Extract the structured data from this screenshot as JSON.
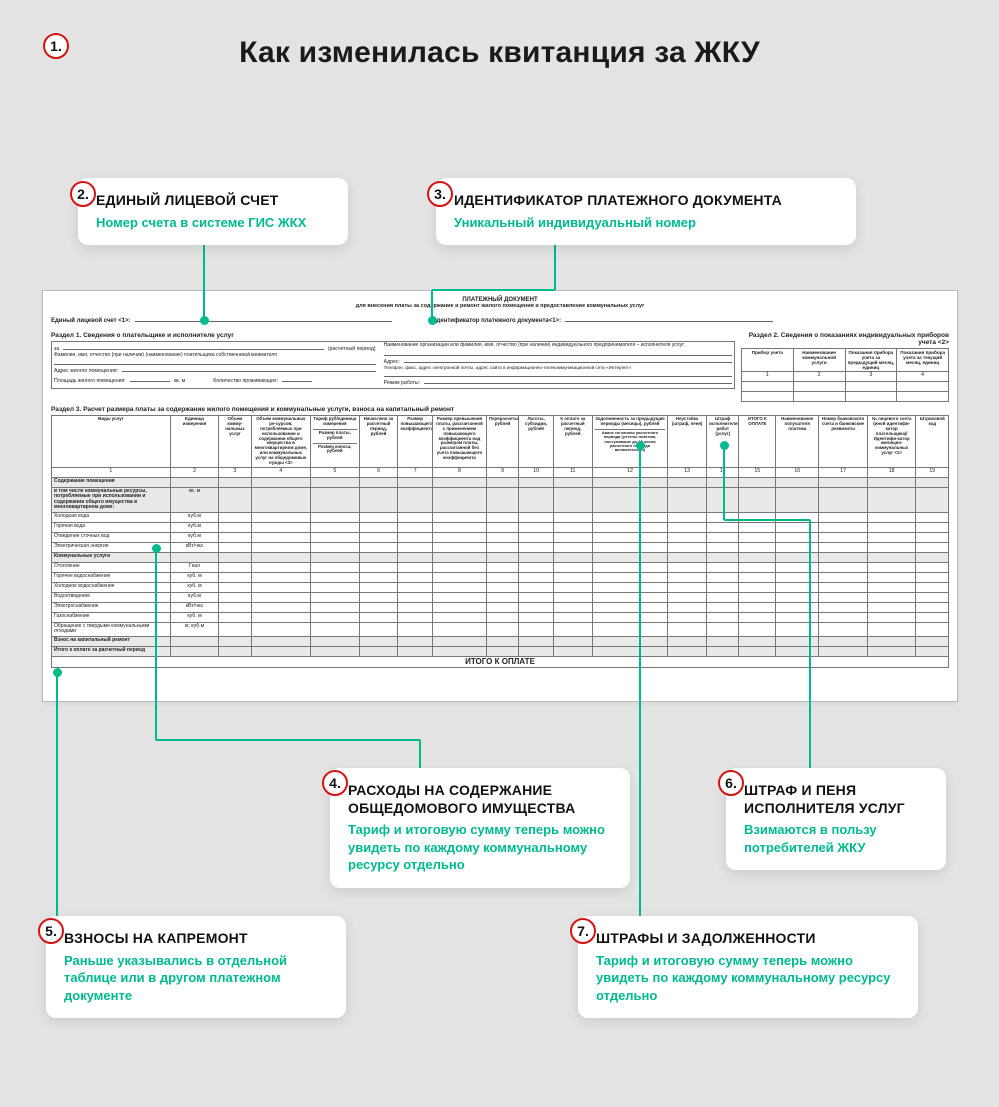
{
  "colors": {
    "accent": "#00b98d",
    "badge_border": "#d31414",
    "bg": "#e3e3e3",
    "doc_border": "#bcbcbc",
    "line": "#00b98d"
  },
  "title": "Как изменилась квитанция за ЖКУ",
  "badges": {
    "b1": "1.",
    "b2": "2.",
    "b3": "3.",
    "b4": "4.",
    "b5": "5.",
    "b6": "6.",
    "b7": "7."
  },
  "callouts": {
    "c2": {
      "h": "ЕДИНЫЙ ЛИЦЕВОЙ СЧЕТ",
      "s": "Номер счета в системе ГИС ЖКХ"
    },
    "c3": {
      "h": "ИДЕНТИФИКАТОР ПЛАТЕЖНОГО ДОКУМЕНТА",
      "s": "Уникальный индивидуальный номер"
    },
    "c4": {
      "h": "РАСХОДЫ НА СОДЕРЖАНИЕ ОБЩЕДОМОВОГО ИМУЩЕСТВА",
      "s": "Тариф и итоговую сумму теперь можно увидеть по каждому коммунальному ресурсу отдельно"
    },
    "c5": {
      "h": "ВЗНОСЫ НА КАПРЕМОНТ",
      "s": "Раньше указывались в отдельной таблице или в другом платежном документе"
    },
    "c6": {
      "h": "ШТРАФ И ПЕНЯ ИСПОЛНИТЕЛЯ УСЛУГ",
      "s": "Взимаются в пользу потребителей ЖКУ"
    },
    "c7": {
      "h": "ШТРАФЫ И ЗАДОЛЖЕННОСТИ",
      "s": "Тариф и итоговую сумму теперь можно увидеть по каждому коммунальному ресурсу отдельно"
    }
  },
  "doc": {
    "header1": "ПЛАТЕЖНЫЙ ДОКУМЕНТ",
    "header2": "для внесения платы за содержание и ремонт жилого помещения и предоставление коммунальных услуг",
    "account_label": "Единый лицевой счет <1>:",
    "ident_label": "Идентификатор платежного документа<1>:",
    "sec1": "Раздел 1.   Сведения о плательщике и исполнителе услуг",
    "sec2": "Раздел 2.  Сведения о показаниях индивидуальных приборов учета <2>",
    "sec1_rows": {
      "r1a": "за",
      "r1b": "(расчетный период)",
      "r2": "Фамилия, имя, отчество (при наличии) (наименование) плательщика собственника/нанимателя",
      "r3": "Адрес жилого помещения:",
      "r4a": "Площадь жилого помещения:",
      "r4b": "кв. м",
      "r4c": "Количество проживающих:",
      "r5": "Наименование организации или фамилия, имя, отчество (при наличии) индивидуального предпринимателя – исполнителя услуг:",
      "r6": "Адрес:",
      "r7": "Телефон, факс, адрес электронной почты, адрес сайта в информационно-телекоммуникационной сети «Интернет»:",
      "r8": "Режим работы:"
    },
    "sec2_cols": [
      "Прибор учета",
      "Наименование коммунальной услуги",
      "Показания прибора учета за предыдущий месяц, единиц",
      "Показания прибора учета за текущий месяц, единиц"
    ],
    "sec2_nums": [
      "1",
      "2",
      "3",
      "4"
    ],
    "sec3": "Раздел 3.   Расчет размера платы за содержание жилого помещения и коммунальные услуги, взноса на капитальный ремонт",
    "sec3_cols": [
      "Виды услуг",
      "Единица измерения",
      "Объем комму-нальных услуг",
      "Объем коммунальных ре-сурсов, потребляемых при использовании и содержании общего имущества в многоквартирном доме, или коммунальных услуг на общедомовые нужды <3>",
      "Тариф руб/единица измерения",
      "Начислено за расчетный период, рублей",
      "Размер повышающего коэффициента",
      "Размер превышения платы, рассчитанной с применением повышающего коэффициента над размером платы, рассчитанной без учета повышающего коэффициента",
      "Перерасчеты, рублей",
      "Льготы, субсидии, рублей",
      "К оплате за расчетный период, рублей",
      "Задолженность за предыдущие периоды (месяцы), рублей",
      "Неустойка (штраф, пеня)",
      "Штраф исполнителя работ (услуг)",
      "ИТОГО К ОПЛАТЕ",
      "Наименование получателя платежа",
      "Номер банковского счета и банковские реквизиты",
      "№ лицевого счета (иной идентифи-катор плательщика)/ Идентифи-катор жилищно-коммунальных услуг <1>",
      "Штриховой код"
    ],
    "sec3_sub": {
      "c5a": "Размер платы, рублей",
      "c5b": "Размер взноса, рублей",
      "c12b": "Аванс на начало расчетного периода (учтены платежи, поступившие до 25 числа расчетного периода включительно)"
    },
    "sec3_nums": [
      "1",
      "2",
      "3",
      "4",
      "5",
      "6",
      "7",
      "8",
      "9",
      "10",
      "11",
      "12",
      "13",
      "14",
      "15",
      "16",
      "17",
      "18",
      "19"
    ],
    "rows": [
      {
        "n": "Содержание помещения",
        "u": "",
        "g": true
      },
      {
        "n": "в том числе коммунальные ресурсы, потребляемые при использовании и содержании общего имущества в многоквартирном доме:",
        "u": "кв. м",
        "g": true
      },
      {
        "n": "Холодная вода",
        "u": "куб.м"
      },
      {
        "n": "Горячая вода",
        "u": "куб.м"
      },
      {
        "n": "Отведение сточных вод",
        "u": "куб.м"
      },
      {
        "n": "Электрическая энергия",
        "u": "кВт/час"
      },
      {
        "n": "Коммунальные услуги",
        "u": "",
        "g": true
      },
      {
        "n": "Отопление",
        "u": "Гкал"
      },
      {
        "n": "Горячее водоснабжение",
        "u": "куб. м"
      },
      {
        "n": "Холодное водоснабжение",
        "u": "куб. м"
      },
      {
        "n": "Водоотведение",
        "u": "куб.м"
      },
      {
        "n": "Электроснабжение",
        "u": "кВт/час"
      },
      {
        "n": "Газоснабжение",
        "u": "куб. м"
      },
      {
        "n": "Обращение с твердыми коммунальными отходами",
        "u": "кг, куб.м"
      },
      {
        "n": "Взнос на капитальный ремонт",
        "u": "",
        "g": true
      },
      {
        "n": "Итого к оплате за расчетный период",
        "u": "",
        "g": true
      }
    ],
    "total": "ИТОГО К ОПЛАТЕ"
  }
}
